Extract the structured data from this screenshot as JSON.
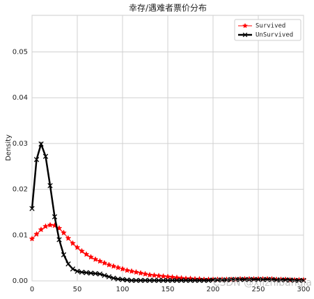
{
  "chart_data": {
    "type": "line",
    "title": "幸存/遇难者票价分布",
    "ylabel": "Density",
    "x": [
      0,
      5,
      10,
      15,
      20,
      25,
      30,
      35,
      40,
      45,
      50,
      55,
      60,
      65,
      70,
      75,
      80,
      85,
      90,
      95,
      100,
      105,
      110,
      115,
      120,
      125,
      130,
      135,
      140,
      145,
      150,
      155,
      160,
      165,
      170,
      175,
      180,
      185,
      190,
      195,
      200,
      205,
      210,
      215,
      220,
      225,
      230,
      235,
      240,
      245,
      250,
      255,
      260,
      265,
      270,
      275,
      280,
      285,
      290,
      295,
      300
    ],
    "series": [
      {
        "name": "Survived",
        "color": "#ff0000",
        "marker": "star",
        "values": [
          0.0092,
          0.0102,
          0.0112,
          0.0119,
          0.0122,
          0.0121,
          0.0115,
          0.0105,
          0.0093,
          0.0082,
          0.0073,
          0.0065,
          0.0058,
          0.0052,
          0.0047,
          0.0043,
          0.0039,
          0.0035,
          0.0032,
          0.0029,
          0.0026,
          0.0023,
          0.0021,
          0.0019,
          0.0017,
          0.0015,
          0.0013,
          0.0012,
          0.0011,
          0.001,
          0.0009,
          0.0008,
          0.0007,
          0.0006,
          0.0005,
          0.0005,
          0.0004,
          0.0004,
          0.0003,
          0.0003,
          0.0003,
          0.0003,
          0.0003,
          0.0003,
          0.0003,
          0.0003,
          0.0004,
          0.0004,
          0.0004,
          0.0004,
          0.0004,
          0.0004,
          0.0004,
          0.0004,
          0.0003,
          0.0003,
          0.0003,
          0.0002,
          0.0002,
          0.0002,
          0.0002
        ]
      },
      {
        "name": "UnSurvived",
        "color": "#000000",
        "marker": "x",
        "values": [
          0.0158,
          0.0265,
          0.0299,
          0.0272,
          0.0208,
          0.014,
          0.009,
          0.0057,
          0.0037,
          0.0026,
          0.0021,
          0.0019,
          0.0018,
          0.0017,
          0.0016,
          0.0015,
          0.0012,
          0.0009,
          0.0006,
          0.0004,
          0.0003,
          0.0002,
          0.0001,
          0.0001,
          0.0001,
          0.0001,
          0.0001,
          0.0001,
          0.0001,
          0.0001,
          0.0001,
          0.0001,
          0.0001,
          0.0001,
          0.0001,
          0.0001,
          0.0001,
          0.0001,
          0.0001,
          0.0001,
          0.0002,
          0.0002,
          0.0002,
          0.0002,
          0.0003,
          0.0003,
          0.0003,
          0.0003,
          0.0003,
          0.0003,
          0.0003,
          0.0003,
          0.0003,
          0.0003,
          0.0002,
          0.0002,
          0.0002,
          0.0002,
          0.0001,
          0.0001,
          0.0001
        ]
      }
    ],
    "xlim": [
      0,
      300
    ],
    "xticks": [
      0,
      50,
      100,
      150,
      200,
      250,
      300
    ],
    "ylim": [
      0,
      0.058
    ],
    "yticks": [
      {
        "value": 0,
        "label": "0.00"
      },
      0.01,
      0.02,
      0.03,
      0.04,
      0.05
    ],
    "grid": true,
    "legend": "upper right",
    "watermark": "CSDN @xlizhibangla"
  }
}
